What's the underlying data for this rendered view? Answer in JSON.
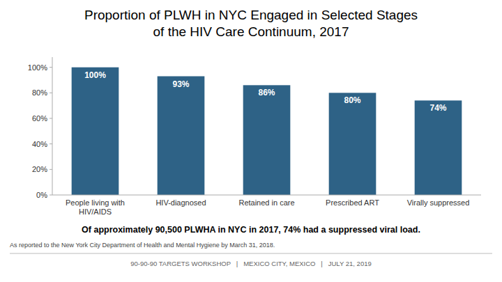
{
  "chart_data": {
    "type": "bar",
    "title": "Proportion of PLWH in NYC Engaged in Selected Stages\nof the HIV Care Continuum, 2017",
    "categories": [
      "People living with\nHIV/AIDS",
      "HIV-diagnosed",
      "Retained in care",
      "Prescribed ART",
      "Virally suppressed"
    ],
    "values": [
      100,
      93,
      86,
      80,
      74
    ],
    "value_labels": [
      "100%",
      "93%",
      "86%",
      "80%",
      "74%"
    ],
    "data_labels": true,
    "color": "#2E6286",
    "ylim": [
      0,
      108
    ],
    "yticks": [
      {
        "value": 0,
        "label": "0%"
      },
      {
        "value": 20,
        "label": "20%"
      },
      {
        "value": 40,
        "label": "40%"
      },
      {
        "value": 60,
        "label": "60%"
      },
      {
        "value": 80,
        "label": "80%"
      },
      {
        "value": 100,
        "label": "100%"
      }
    ],
    "grid": false,
    "annotation": "Of approximately 90,500 PLWHA in NYC in 2017, 74% had a suppressed viral load.",
    "footnote": "As reported to the New York City Department of Health and Mental Hygiene by March 31, 2018.",
    "footer": "90-90-90 TARGETS WORKSHOP   |   MEXICO CITY, MEXICO   |   JULY 21, 2019"
  }
}
